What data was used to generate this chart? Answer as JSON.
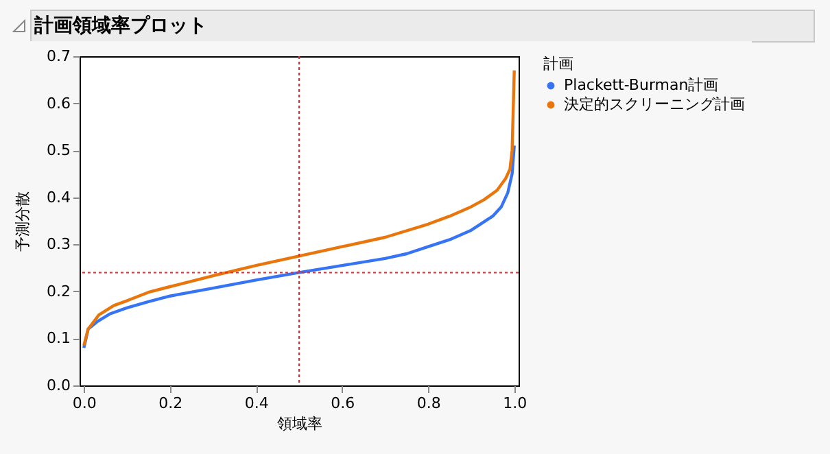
{
  "chart_data": {
    "type": "line",
    "title": "計画領域率プロット",
    "xlabel": "領域率",
    "ylabel": "予測分散",
    "legend_title": "計画",
    "legend": "top right",
    "marker": "none",
    "line_style": "solid",
    "grid": false,
    "xlim": [
      -0.01,
      1.01
    ],
    "xticks": [
      {
        "value": 0,
        "label": "0.0"
      },
      0.2,
      0.4,
      0.6,
      0.8,
      {
        "value": 1,
        "label": "1.0"
      }
    ],
    "ylim": [
      0,
      0.7
    ],
    "yticks": [
      {
        "value": 0,
        "label": "0.0"
      },
      0.1,
      0.2,
      0.3,
      0.4,
      0.5,
      0.6,
      0.7
    ],
    "series": [
      {
        "name": "Plackett-Burman計画",
        "color": "#3674f4",
        "x": [
          0,
          0.01,
          0.03,
          0.06,
          0.1,
          0.15,
          0.2,
          0.3,
          0.4,
          0.5,
          0.6,
          0.7,
          0.75,
          0.8,
          0.85,
          0.9,
          0.95,
          0.97,
          0.985,
          0.995,
          1.0
        ],
        "values": [
          0.08,
          0.12,
          0.135,
          0.152,
          0.165,
          0.178,
          0.19,
          0.207,
          0.224,
          0.24,
          0.255,
          0.27,
          0.28,
          0.295,
          0.31,
          0.33,
          0.36,
          0.38,
          0.41,
          0.45,
          0.51
        ]
      },
      {
        "name": "決定的スクリーニング計画",
        "color": "#e8760c",
        "x": [
          0,
          0.01,
          0.035,
          0.07,
          0.1,
          0.15,
          0.2,
          0.3,
          0.4,
          0.5,
          0.6,
          0.7,
          0.8,
          0.85,
          0.9,
          0.93,
          0.96,
          0.98,
          0.99,
          0.995,
          1.0
        ],
        "values": [
          0.085,
          0.12,
          0.15,
          0.17,
          0.18,
          0.198,
          0.21,
          0.233,
          0.255,
          0.275,
          0.295,
          0.315,
          0.343,
          0.36,
          0.38,
          0.395,
          0.415,
          0.44,
          0.46,
          0.5,
          0.67
        ]
      }
    ],
    "ref_lines": [
      {
        "axis": "y",
        "value": 0.24,
        "color": "#e8282e",
        "line_style": "dotted"
      },
      {
        "axis": "x",
        "value": 0.5,
        "color": "#e8282e",
        "line_style": "dotted"
      }
    ]
  }
}
